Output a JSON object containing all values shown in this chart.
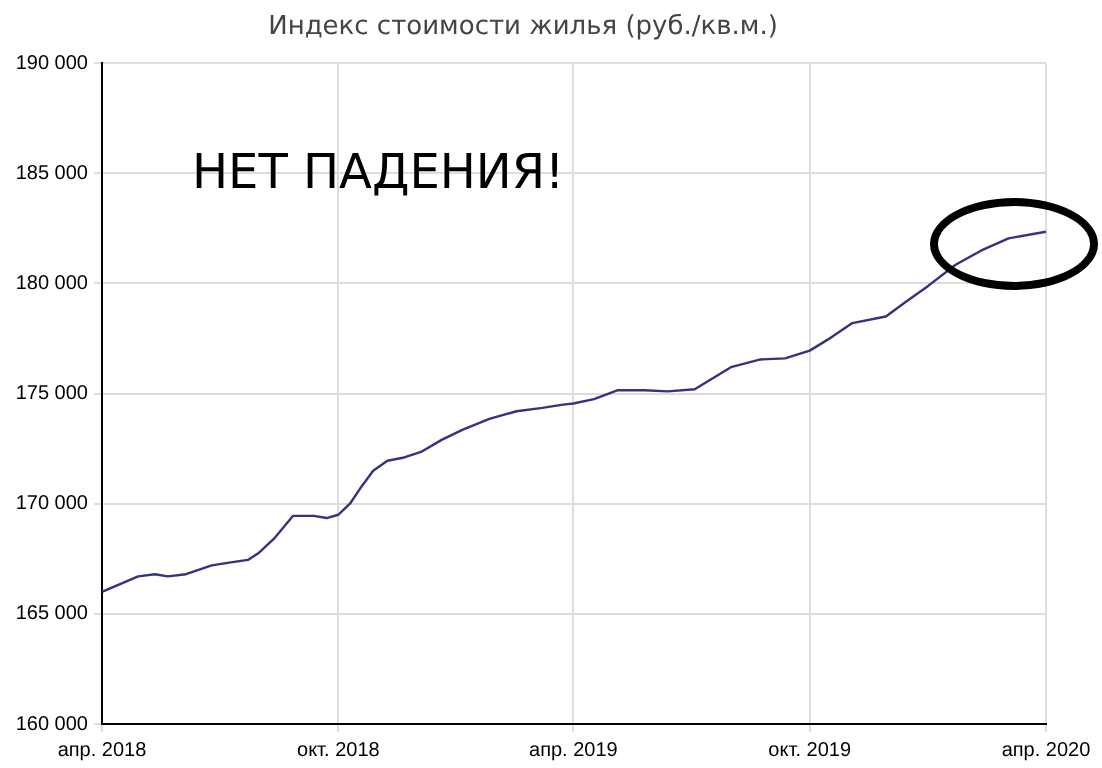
{
  "chart_data": {
    "type": "line",
    "title": "Индекс стоимости жилья (руб./кв.м.)",
    "annotations": [
      "НЕТ ПАДЕНИЯ!"
    ],
    "x": [
      "2018-04-01",
      "2018-04-29",
      "2018-05-12",
      "2018-05-22",
      "2018-06-05",
      "2018-06-25",
      "2018-07-11",
      "2018-07-23",
      "2018-07-31",
      "2018-08-12",
      "2018-08-27",
      "2018-09-12",
      "2018-09-22",
      "2018-10-01",
      "2018-10-10",
      "2018-10-18",
      "2018-10-28",
      "2018-11-08",
      "2018-11-21",
      "2018-12-04",
      "2018-12-20",
      "2019-01-05",
      "2019-01-26",
      "2019-02-16",
      "2019-03-08",
      "2019-03-24",
      "2019-04-01",
      "2019-04-17",
      "2019-05-05",
      "2019-05-26",
      "2019-06-13",
      "2019-07-04",
      "2019-08-01",
      "2019-08-24",
      "2019-09-12",
      "2019-10-01",
      "2019-10-15",
      "2019-11-03",
      "2019-11-29",
      "2019-12-14",
      "2020-01-01",
      "2020-01-22",
      "2020-02-11",
      "2020-03-03",
      "2020-04-01"
    ],
    "series": [
      {
        "color": "#33337f",
        "values": [
          166000,
          166700,
          166800,
          166700,
          166800,
          167200,
          167350,
          167450,
          167750,
          168400,
          169450,
          169450,
          169350,
          169500,
          170000,
          170700,
          171500,
          171950,
          172100,
          172350,
          172900,
          173350,
          173850,
          174200,
          174350,
          174500,
          174550,
          174750,
          175150,
          175150,
          175100,
          175200,
          176200,
          176550,
          176600,
          176950,
          177450,
          178200,
          178500,
          179150,
          179900,
          180850,
          181500,
          182050,
          182350
        ]
      }
    ],
    "xlim": [
      "2018-04-01",
      "2020-04-01"
    ],
    "xticks": [
      {
        "value": "2018-04-01",
        "label": "апр. 2018"
      },
      {
        "value": "2018-10-01",
        "label": "окт. 2018"
      },
      {
        "value": "2019-04-01",
        "label": "апр. 2019"
      },
      {
        "value": "2019-10-01",
        "label": "окт. 2019"
      },
      {
        "value": "2020-04-01",
        "label": "апр. 2020"
      }
    ],
    "ylim": [
      160000,
      190000
    ],
    "yticks": [
      {
        "value": 160000,
        "label": "160 000"
      },
      {
        "value": 165000,
        "label": "165 000"
      },
      {
        "value": 170000,
        "label": "170 000"
      },
      {
        "value": 175000,
        "label": "175 000"
      },
      {
        "value": 180000,
        "label": "180 000"
      },
      {
        "value": 185000,
        "label": "185 000"
      },
      {
        "value": 190000,
        "label": "190 000"
      }
    ],
    "grid": true,
    "legend": false,
    "marker": "none",
    "line_style": "solid"
  }
}
